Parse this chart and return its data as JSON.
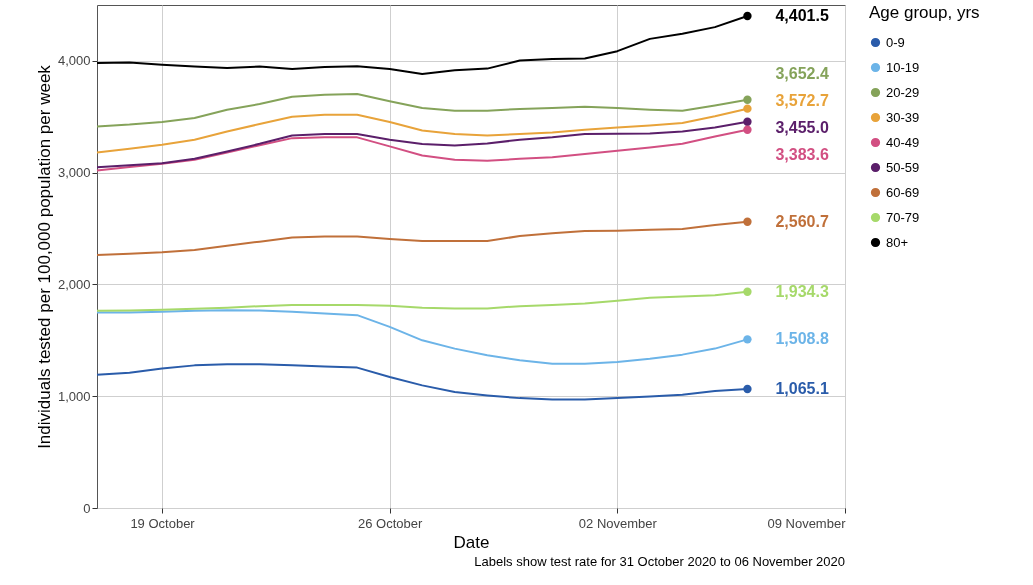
{
  "chart_data": {
    "type": "line",
    "xlabel": "Date",
    "ylabel": "Individuals tested per 100,000 population per week",
    "legend_title": "Age group, yrs",
    "legend": "right",
    "grid": true,
    "annotations": [
      "Labels show test rate for 31 October 2020 to 06 November 2020"
    ],
    "x": [
      "2020-10-17",
      "2020-10-18",
      "2020-10-19",
      "2020-10-20",
      "2020-10-21",
      "2020-10-22",
      "2020-10-23",
      "2020-10-24",
      "2020-10-25",
      "2020-10-26",
      "2020-10-27",
      "2020-10-28",
      "2020-10-29",
      "2020-10-30",
      "2020-10-31",
      "2020-11-01",
      "2020-11-02",
      "2020-11-03",
      "2020-11-04",
      "2020-11-05",
      "2020-11-06"
    ],
    "xlim": [
      "2020-10-17",
      "2020-11-09"
    ],
    "xticks": [
      {
        "value": "2020-10-19",
        "label": "19 October"
      },
      {
        "value": "2020-10-26",
        "label": "26 October"
      },
      {
        "value": "2020-11-02",
        "label": "02 November"
      },
      {
        "value": "2020-11-09",
        "label": "09 November"
      }
    ],
    "ylim": [
      0,
      4500
    ],
    "yticks": [
      0,
      {
        "value": 1000,
        "label": "1,000"
      },
      {
        "value": 2000,
        "label": "2,000"
      },
      {
        "value": 3000,
        "label": "3,000"
      },
      {
        "value": 4000,
        "label": "4,000"
      }
    ],
    "series": [
      {
        "name": "0-9",
        "color": "#2a5caa",
        "values": [
          1193,
          1211,
          1247,
          1276,
          1285,
          1285,
          1276,
          1267,
          1256,
          1172,
          1097,
          1037,
          1007,
          983,
          971,
          971,
          983,
          998,
          1013,
          1046,
          1065.1
        ],
        "value_labels": [
          null,
          null,
          null,
          null,
          null,
          null,
          null,
          null,
          null,
          null,
          null,
          null,
          null,
          null,
          null,
          null,
          null,
          null,
          null,
          null,
          "1,065.1"
        ]
      },
      {
        "name": "10-19",
        "color": "#6cb4e8",
        "values": [
          1749,
          1750,
          1755,
          1764,
          1770,
          1767,
          1755,
          1740,
          1725,
          1620,
          1500,
          1426,
          1366,
          1321,
          1291,
          1291,
          1307,
          1336,
          1372,
          1426,
          1508.8
        ],
        "value_labels": [
          null,
          null,
          null,
          null,
          null,
          null,
          null,
          null,
          null,
          null,
          null,
          null,
          null,
          null,
          null,
          null,
          null,
          null,
          null,
          null,
          "1,508.8"
        ]
      },
      {
        "name": "20-29",
        "color": "#85a35a",
        "values": [
          3414,
          3430,
          3453,
          3489,
          3563,
          3614,
          3680,
          3698,
          3704,
          3639,
          3578,
          3554,
          3554,
          3570,
          3578,
          3590,
          3578,
          3563,
          3554,
          3600,
          3652.4
        ],
        "value_labels": [
          null,
          null,
          null,
          null,
          null,
          null,
          null,
          null,
          null,
          null,
          null,
          null,
          null,
          null,
          null,
          null,
          null,
          null,
          null,
          null,
          "3,652.4"
        ]
      },
      {
        "name": "30-39",
        "color": "#e8a33a",
        "values": [
          3181,
          3215,
          3249,
          3294,
          3369,
          3435,
          3500,
          3518,
          3518,
          3453,
          3378,
          3345,
          3333,
          3345,
          3360,
          3384,
          3405,
          3423,
          3444,
          3504,
          3572.7
        ],
        "value_labels": [
          null,
          null,
          null,
          null,
          null,
          null,
          null,
          null,
          null,
          null,
          null,
          null,
          null,
          null,
          null,
          null,
          null,
          null,
          null,
          null,
          "3,572.7"
        ]
      },
      {
        "name": "40-49",
        "color": "#d24f82",
        "values": [
          3020,
          3050,
          3080,
          3115,
          3180,
          3245,
          3309,
          3316,
          3316,
          3235,
          3154,
          3115,
          3106,
          3124,
          3139,
          3166,
          3195,
          3226,
          3258,
          3324,
          3383.6
        ],
        "value_labels": [
          null,
          null,
          null,
          null,
          null,
          null,
          null,
          null,
          null,
          null,
          null,
          null,
          null,
          null,
          null,
          null,
          null,
          null,
          null,
          null,
          "3,383.6"
        ]
      },
      {
        "name": "50-59",
        "color": "#5b1f6a",
        "values": [
          3049,
          3067,
          3085,
          3124,
          3190,
          3258,
          3333,
          3345,
          3345,
          3294,
          3256,
          3244,
          3262,
          3294,
          3316,
          3345,
          3348,
          3350,
          3369,
          3405,
          3455.0
        ],
        "value_labels": [
          null,
          null,
          null,
          null,
          null,
          null,
          null,
          null,
          null,
          null,
          null,
          null,
          null,
          null,
          null,
          null,
          null,
          null,
          null,
          null,
          "3,455.0"
        ]
      },
      {
        "name": "60-69",
        "color": "#c0703a",
        "values": [
          2263,
          2275,
          2287,
          2308,
          2347,
          2383,
          2419,
          2428,
          2428,
          2406,
          2388,
          2388,
          2388,
          2433,
          2457,
          2478,
          2481,
          2490,
          2496,
          2532,
          2560.7
        ],
        "value_labels": [
          null,
          null,
          null,
          null,
          null,
          null,
          null,
          null,
          null,
          null,
          null,
          null,
          null,
          null,
          null,
          null,
          null,
          null,
          null,
          null,
          "2,560.7"
        ]
      },
      {
        "name": "70-79",
        "color": "#a6d96a",
        "values": [
          1764,
          1768,
          1773,
          1782,
          1791,
          1806,
          1815,
          1815,
          1815,
          1809,
          1791,
          1785,
          1785,
          1806,
          1815,
          1830,
          1854,
          1880,
          1892,
          1904,
          1934.3
        ],
        "value_labels": [
          null,
          null,
          null,
          null,
          null,
          null,
          null,
          null,
          null,
          null,
          null,
          null,
          null,
          null,
          null,
          null,
          null,
          null,
          null,
          null,
          "1,934.3"
        ]
      },
      {
        "name": "80+",
        "color": "#000000",
        "values": [
          3982,
          3985,
          3965,
          3950,
          3937,
          3950,
          3928,
          3945,
          3952,
          3928,
          3883,
          3916,
          3931,
          4003,
          4018,
          4021,
          4087,
          4197,
          4242,
          4302,
          4401.5
        ],
        "value_labels": [
          null,
          null,
          null,
          null,
          null,
          null,
          null,
          null,
          null,
          null,
          null,
          null,
          null,
          null,
          null,
          null,
          null,
          null,
          null,
          null,
          "4,401.5"
        ]
      }
    ]
  }
}
